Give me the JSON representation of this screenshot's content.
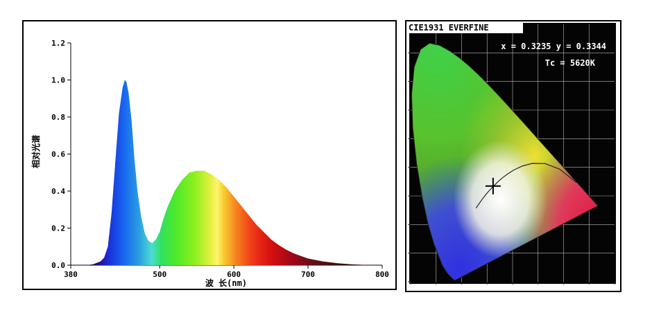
{
  "chart_data": [
    {
      "type": "area",
      "xlabel": "波 长(nm)",
      "ylabel": "相对光谱",
      "xlim": [
        380,
        800
      ],
      "ylim": [
        0,
        1.2
      ],
      "x_ticks": [
        380,
        500,
        600,
        700,
        800
      ],
      "y_ticks": [
        "0.0",
        "0.2",
        "0.4",
        "0.6",
        "0.8",
        "1.0",
        "1.2"
      ],
      "grid": false,
      "fill": "wavelength-colored spectrum",
      "series": [
        {
          "x": [
            380,
            400,
            410,
            420,
            425,
            430,
            435,
            440,
            445,
            450,
            453,
            455,
            458,
            462,
            466,
            470,
            475,
            480,
            485,
            490,
            495,
            500,
            505,
            510,
            520,
            530,
            540,
            550,
            560,
            570,
            580,
            590,
            600,
            610,
            620,
            630,
            640,
            650,
            660,
            670,
            680,
            690,
            700,
            720,
            740,
            760,
            780,
            800
          ],
          "y": [
            0.0,
            0.0,
            0.005,
            0.02,
            0.04,
            0.1,
            0.28,
            0.55,
            0.82,
            0.96,
            1.0,
            0.99,
            0.93,
            0.78,
            0.57,
            0.4,
            0.26,
            0.17,
            0.13,
            0.12,
            0.14,
            0.18,
            0.25,
            0.31,
            0.4,
            0.46,
            0.5,
            0.51,
            0.51,
            0.49,
            0.46,
            0.42,
            0.37,
            0.32,
            0.27,
            0.22,
            0.18,
            0.14,
            0.11,
            0.085,
            0.065,
            0.05,
            0.036,
            0.02,
            0.01,
            0.004,
            0.001,
            0.0
          ]
        }
      ]
    },
    {
      "type": "scatter",
      "title": "CIE1931 EVERFINE",
      "annotations": [
        "x = 0.3235 y = 0.3344",
        "Tc = 5620K"
      ],
      "point": {
        "x": 0.3235,
        "y": 0.3344
      },
      "xlim": [
        0,
        0.8
      ],
      "ylim": [
        0,
        0.9
      ],
      "grid": true,
      "background": "black"
    }
  ]
}
